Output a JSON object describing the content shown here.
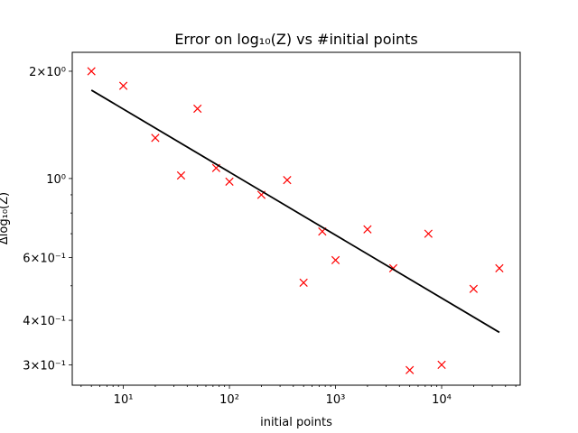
{
  "chart_data": {
    "type": "scatter",
    "title": "Error on log₁₀(Z) vs #initial points",
    "xlabel": "initial points",
    "ylabel": "Δlog₁₀(Z)",
    "xscale": "log",
    "yscale": "log",
    "xlim": [
      3.3,
      55000
    ],
    "ylim": [
      0.263,
      2.26
    ],
    "grid": false,
    "x_ticks": [
      {
        "value": 10,
        "label": "10¹"
      },
      {
        "value": 100,
        "label": "10²"
      },
      {
        "value": 1000,
        "label": "10³"
      },
      {
        "value": 10000,
        "label": "10⁴"
      }
    ],
    "y_ticks": [
      {
        "value": 2.0,
        "label": "2×10⁰"
      },
      {
        "value": 1.0,
        "label": "10⁰"
      },
      {
        "value": 0.6,
        "label": "6×10⁻¹"
      },
      {
        "value": 0.4,
        "label": "4×10⁻¹"
      },
      {
        "value": 0.3,
        "label": "3×10⁻¹"
      }
    ],
    "series": [
      {
        "kind": "scatter",
        "marker": "x",
        "color": "#ff0000",
        "x": [
          5,
          10,
          20,
          35,
          50,
          75,
          100,
          200,
          350,
          500,
          750,
          1000,
          2000,
          3500,
          5000,
          7500,
          10000,
          20000,
          35000
        ],
        "y": [
          2.0,
          1.82,
          1.3,
          1.02,
          1.57,
          1.07,
          0.98,
          0.9,
          0.99,
          0.51,
          0.71,
          0.59,
          0.72,
          0.56,
          0.29,
          0.7,
          0.3,
          0.49,
          0.56
        ]
      },
      {
        "kind": "line",
        "color": "#000000",
        "x": [
          5,
          35000
        ],
        "y": [
          1.77,
          0.37
        ]
      }
    ]
  }
}
